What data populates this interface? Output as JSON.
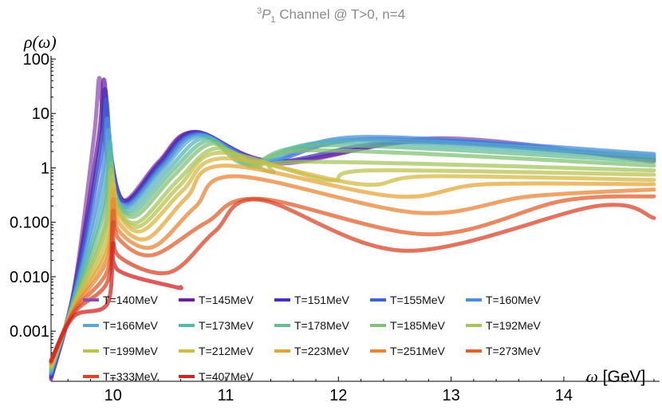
{
  "chart_data": {
    "type": "line",
    "title": "³P₁ Channel @ T>0, n=4",
    "title_parts": {
      "superscript": "3",
      "letter": "P",
      "subscript": "1",
      "rest": " Channel @ T>0, n=4"
    },
    "ylabel": "ρ(ω)",
    "xlabel_symbol": "ω",
    "xlabel_unit": " [GeV]",
    "y_scale": "log",
    "xlim": [
      9.45,
      14.85
    ],
    "ylim": [
      0.00012,
      100
    ],
    "x_ticks": [
      10,
      11,
      12,
      13,
      14
    ],
    "x_tick_labels": [
      "10",
      "11",
      "12",
      "13",
      "14"
    ],
    "y_ticks": [
      0.001,
      0.01,
      0.1,
      1,
      10,
      100
    ],
    "y_tick_labels": [
      "0.001",
      "0.010",
      "0.100",
      "1",
      "10",
      "100"
    ],
    "legend_placement": "bottom-left",
    "series": [
      {
        "name": "T=140MeV",
        "color": "#8f4fb0",
        "peak1": [
          9.88,
          45
        ],
        "min1": [
          10.08,
          0.25
        ],
        "peak2": [
          10.72,
          4.5
        ],
        "trough2": [
          11.45,
          1.2
        ],
        "peak3": [
          12.9,
          3.5
        ],
        "end": 1.3
      },
      {
        "name": "T=145MeV",
        "color": "#6a1fa3",
        "peak1": [
          9.92,
          42
        ],
        "min1": [
          10.1,
          0.25
        ],
        "peak2": [
          10.73,
          4.6
        ],
        "trough2": [
          11.45,
          1.3
        ],
        "peak3": [
          12.85,
          3.2
        ],
        "end": 1.4
      },
      {
        "name": "T=151MeV",
        "color": "#4530b8",
        "peak1": [
          9.93,
          28
        ],
        "min1": [
          10.11,
          0.24
        ],
        "peak2": [
          10.74,
          4.5
        ],
        "trough2": [
          11.4,
          1.3
        ],
        "peak3": [
          12.6,
          3.0
        ],
        "end": 1.5
      },
      {
        "name": "T=155MeV",
        "color": "#3f62d4",
        "peak1": [
          9.94,
          18
        ],
        "min1": [
          10.12,
          0.22
        ],
        "peak2": [
          10.75,
          4.3
        ],
        "trough2": [
          11.35,
          1.35
        ],
        "peak3": [
          12.3,
          3.4
        ],
        "end": 1.6
      },
      {
        "name": "T=160MeV",
        "color": "#4a8ee0",
        "peak1": [
          9.95,
          8
        ],
        "min1": [
          10.13,
          0.2
        ],
        "peak2": [
          10.76,
          4.1
        ],
        "trough2": [
          11.35,
          1.3
        ],
        "peak3": [
          12.2,
          3.7
        ],
        "end": 1.8
      },
      {
        "name": "T=166MeV",
        "color": "#5aa8d2",
        "peak1": [
          9.96,
          5
        ],
        "min1": [
          10.14,
          0.19
        ],
        "peak2": [
          10.78,
          3.9
        ],
        "trough2": [
          11.3,
          1.25
        ],
        "peak3": [
          12.1,
          3.3
        ],
        "end": 1.7
      },
      {
        "name": "T=173MeV",
        "color": "#58b5b5",
        "peak1": [
          9.97,
          3
        ],
        "min1": [
          10.16,
          0.17
        ],
        "peak2": [
          10.82,
          3.6
        ],
        "trough2": [
          11.25,
          1.2
        ],
        "peak3": [
          12.0,
          3.0
        ],
        "end": 1.5
      },
      {
        "name": "T=178MeV",
        "color": "#68bc92",
        "peak1": [
          9.97,
          2
        ],
        "min1": [
          10.18,
          0.15
        ],
        "peak2": [
          10.85,
          3.2
        ],
        "trough2": [
          11.2,
          1.15
        ],
        "peak3": [
          11.9,
          2.6
        ],
        "end": 1.3
      },
      {
        "name": "T=185MeV",
        "color": "#82c274",
        "peak1": [
          9.98,
          1.2
        ],
        "min1": [
          10.2,
          0.13
        ],
        "peak2": [
          10.88,
          2.8
        ],
        "trough2": [
          11.25,
          1.05
        ],
        "peak3": [
          11.8,
          2.1
        ],
        "end": 1.1
      },
      {
        "name": "T=192MeV",
        "color": "#a4c55e",
        "peak1": [
          9.98,
          0.9
        ],
        "min1": [
          10.22,
          0.1
        ],
        "peak2": [
          10.92,
          2.3
        ],
        "trough2": [
          11.4,
          0.85
        ],
        "peak3": [
          11.7,
          1.3
        ],
        "end": 0.9
      },
      {
        "name": "T=199MeV",
        "color": "#bcc24f",
        "peak1": [
          9.99,
          0.7
        ],
        "min1": [
          10.24,
          0.085
        ],
        "peak2": [
          10.95,
          1.9
        ],
        "trough2": [
          11.9,
          0.6
        ],
        "peak3": [
          12.3,
          0.9
        ],
        "end": 0.75
      },
      {
        "name": "T=212MeV",
        "color": "#d4b945",
        "peak1": [
          10.0,
          0.5
        ],
        "min1": [
          10.26,
          0.07
        ],
        "peak2": [
          10.98,
          1.5
        ],
        "trough2": [
          12.2,
          0.5
        ],
        "peak3": [
          12.8,
          0.7
        ],
        "end": 0.6
      },
      {
        "name": "T=223MeV",
        "color": "#e3a53b",
        "peak1": [
          10.0,
          0.38
        ],
        "min1": [
          10.3,
          0.05
        ],
        "peak2": [
          11.0,
          1.1
        ],
        "trough2": [
          12.5,
          0.3
        ],
        "peak3": [
          13.3,
          0.5
        ],
        "end": 0.5
      },
      {
        "name": "T=251MeV",
        "color": "#e88535",
        "peak1": [
          10.0,
          0.26
        ],
        "min1": [
          10.35,
          0.035
        ],
        "peak2": [
          11.1,
          0.7
        ],
        "trough2": [
          12.7,
          0.15
        ],
        "peak3": [
          13.7,
          0.3
        ],
        "end": 0.4
      },
      {
        "name": "T=273MeV",
        "color": "#e0602e",
        "peak1": [
          10.0,
          0.16
        ],
        "min1": [
          10.35,
          0.025
        ],
        "peak2": [
          11.3,
          0.27
        ],
        "trough2": [
          12.8,
          0.06
        ],
        "peak3": [
          14.0,
          0.25
        ],
        "end": 0.3
      },
      {
        "name": "T=333MeV",
        "color": "#d8452a",
        "peak1": [
          10.0,
          0.1
        ],
        "min1": [
          10.5,
          0.012
        ],
        "peak2": [
          11.3,
          0.26
        ],
        "trough2": [
          12.6,
          0.03
        ],
        "peak3": [
          14.3,
          0.2
        ],
        "end": 0.12
      },
      {
        "name": "T=407MeV",
        "color": "#d22323",
        "peak1": [
          10.0,
          0.04
        ],
        "min1": [
          10.55,
          0.0065
        ],
        "peak2": null,
        "trough2": null,
        "peak3": null,
        "end": 0.0065
      }
    ]
  }
}
